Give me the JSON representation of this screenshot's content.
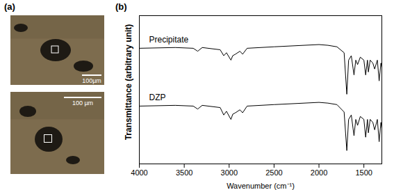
{
  "panel_a": {
    "label": "(a)",
    "images": [
      {
        "scale_bar": "100µm"
      },
      {
        "scale_bar": "100 µm"
      }
    ]
  },
  "chart_data": {
    "type": "line",
    "title": "(b)",
    "x_label": "Wavenumber (cm⁻¹)",
    "y_label": "Transmittance (arbitrary unit)",
    "x": [
      4000,
      3600,
      3400,
      3350,
      3300,
      3100,
      3060,
      3030,
      2980,
      2960,
      2930,
      2880,
      2850,
      2800,
      2500,
      2000,
      1900,
      1800,
      1720,
      1690,
      1670,
      1640,
      1610,
      1590,
      1570,
      1540,
      1500,
      1480,
      1460,
      1450,
      1430,
      1400,
      1380,
      1350,
      1330,
      1310,
      1300
    ],
    "series": [
      {
        "name": "Precipitate",
        "color": "#000000",
        "values": [
          7.8,
          7.85,
          7.8,
          7.6,
          7.85,
          7.7,
          7.3,
          7.5,
          7.0,
          7.3,
          7.4,
          7.6,
          7.4,
          7.8,
          7.9,
          8.05,
          8.0,
          7.9,
          7.5,
          4.7,
          7.0,
          7.3,
          6.0,
          7.0,
          6.7,
          7.2,
          7.0,
          6.0,
          7.0,
          6.2,
          7.0,
          6.8,
          6.4,
          7.0,
          5.6,
          6.8,
          6.5
        ]
      },
      {
        "name": "DZP",
        "color": "#000000",
        "values": [
          3.9,
          3.95,
          3.9,
          3.7,
          3.95,
          3.8,
          3.3,
          3.55,
          3.0,
          3.35,
          3.45,
          3.65,
          3.45,
          3.9,
          4.0,
          4.15,
          4.1,
          4.0,
          3.5,
          0.9,
          3.0,
          3.3,
          1.9,
          3.0,
          2.6,
          3.2,
          3.0,
          1.8,
          3.0,
          2.1,
          3.0,
          2.8,
          2.3,
          3.0,
          1.5,
          2.8,
          2.4
        ]
      }
    ],
    "xlim": [
      4000,
      1300
    ],
    "xticks": [
      4000,
      3500,
      3000,
      2500,
      2000,
      1500
    ],
    "ylim": [
      0,
      10
    ],
    "tick_labels": "x",
    "grid": false
  }
}
